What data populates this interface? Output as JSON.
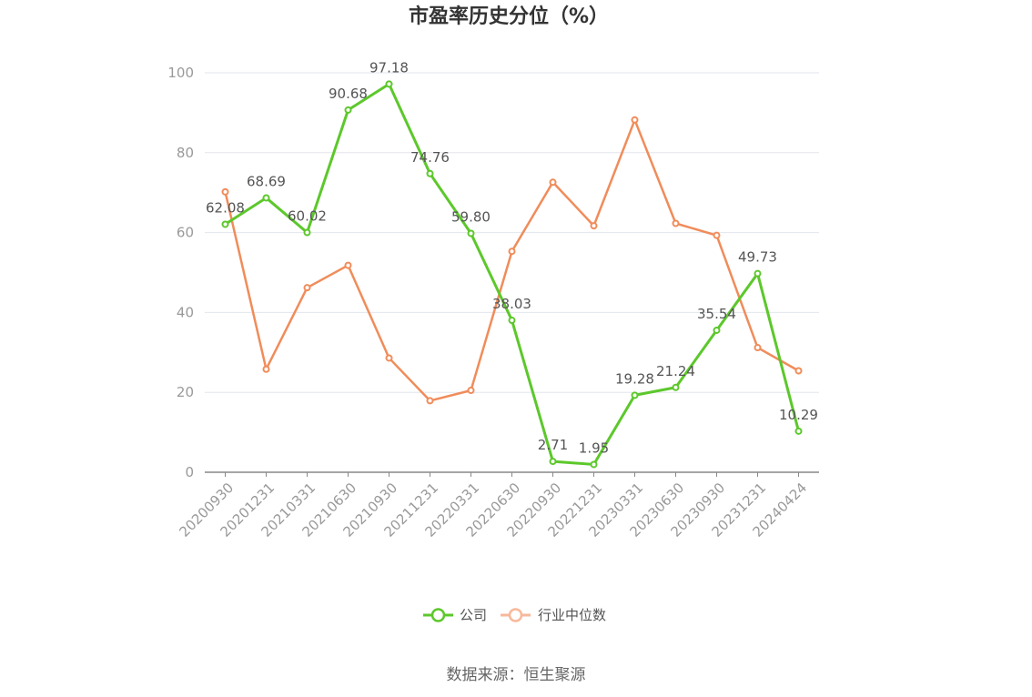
{
  "chart_data": {
    "type": "line",
    "title": "市盈率历史分位（%）",
    "categories": [
      "20200930",
      "20201231",
      "20210331",
      "20210630",
      "20210930",
      "20211231",
      "20220331",
      "20220630",
      "20220930",
      "20221231",
      "20230331",
      "20230630",
      "20230930",
      "20231231",
      "20240424"
    ],
    "series": [
      {
        "name": "公司",
        "color": "#5cc82b",
        "values": [
          62.08,
          68.69,
          60.02,
          90.68,
          97.18,
          74.76,
          59.8,
          38.03,
          2.71,
          1.95,
          19.28,
          21.24,
          35.54,
          49.73,
          10.29
        ],
        "labels": [
          "62.08",
          "68.69",
          "60.02",
          "90.68",
          "97.18",
          "74.76",
          "59.80",
          "38.03",
          "2.71",
          "1.95",
          "19.28",
          "21.24",
          "35.54",
          "49.73",
          "10.29"
        ]
      },
      {
        "name": "行业中位数",
        "color": "#f08c5a",
        "values": [
          70.2,
          25.8,
          46.2,
          51.8,
          28.6,
          17.9,
          20.5,
          55.3,
          72.6,
          61.7,
          88.2,
          62.3,
          59.3,
          31.2,
          25.4
        ]
      }
    ],
    "ylim": [
      0,
      100
    ],
    "yticks": [
      0,
      20,
      40,
      60,
      80,
      100
    ],
    "grid": true,
    "legend_position": "bottom"
  },
  "source": "数据来源：恒生聚源"
}
